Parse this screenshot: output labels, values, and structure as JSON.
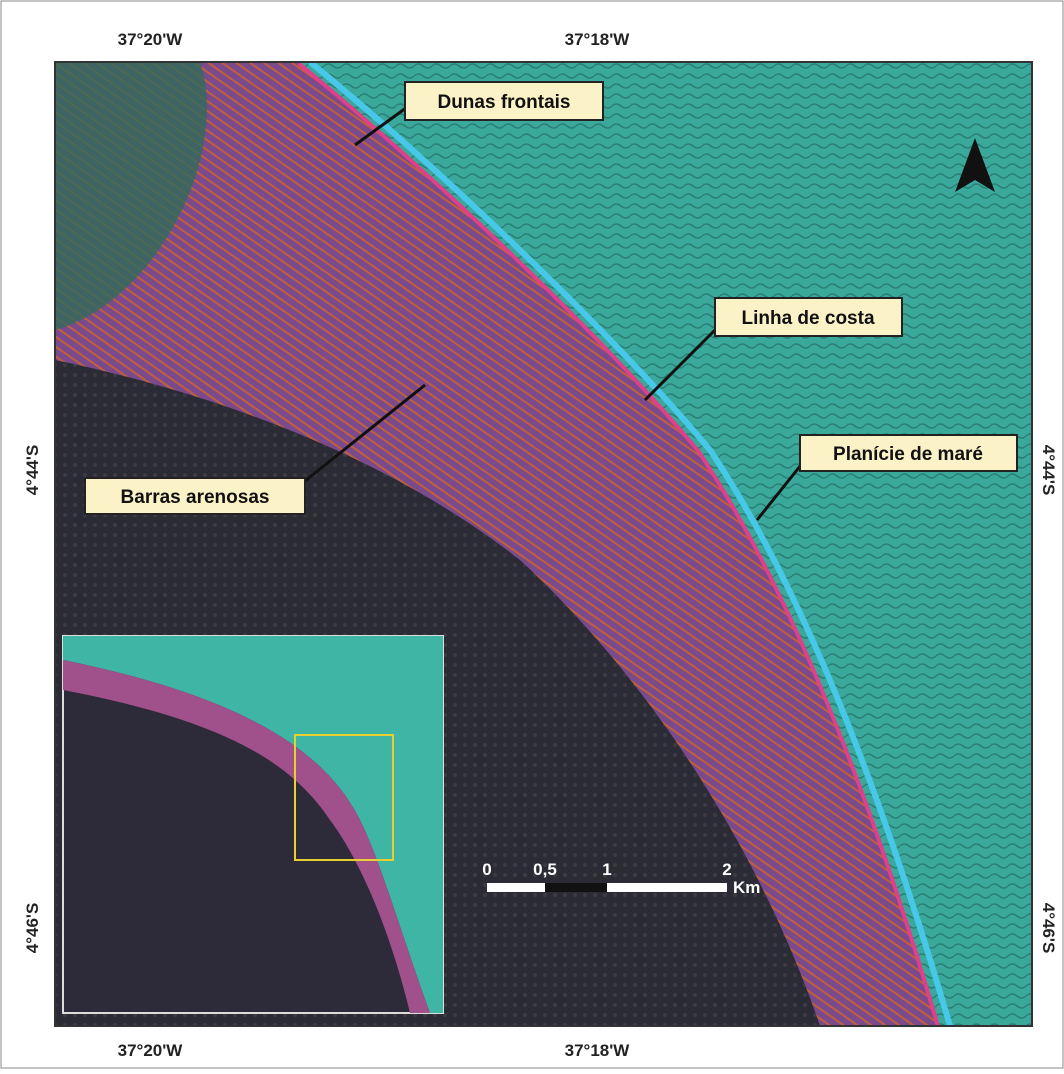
{
  "coordinates": {
    "top": [
      "37°20'W",
      "37°18'W"
    ],
    "bottom": [
      "37°20'W",
      "37°18'W"
    ],
    "left": [
      "4°44'S",
      "4°46'S"
    ],
    "right": [
      "4°44'S",
      "4°46'S"
    ]
  },
  "labels": [
    "Dunas frontais",
    "Linha de costa",
    "Planície de maré",
    "Barras arenosas"
  ],
  "scale_bar": {
    "ticks": [
      "0",
      "0,5",
      "1",
      "2"
    ],
    "unit": "Km"
  }
}
